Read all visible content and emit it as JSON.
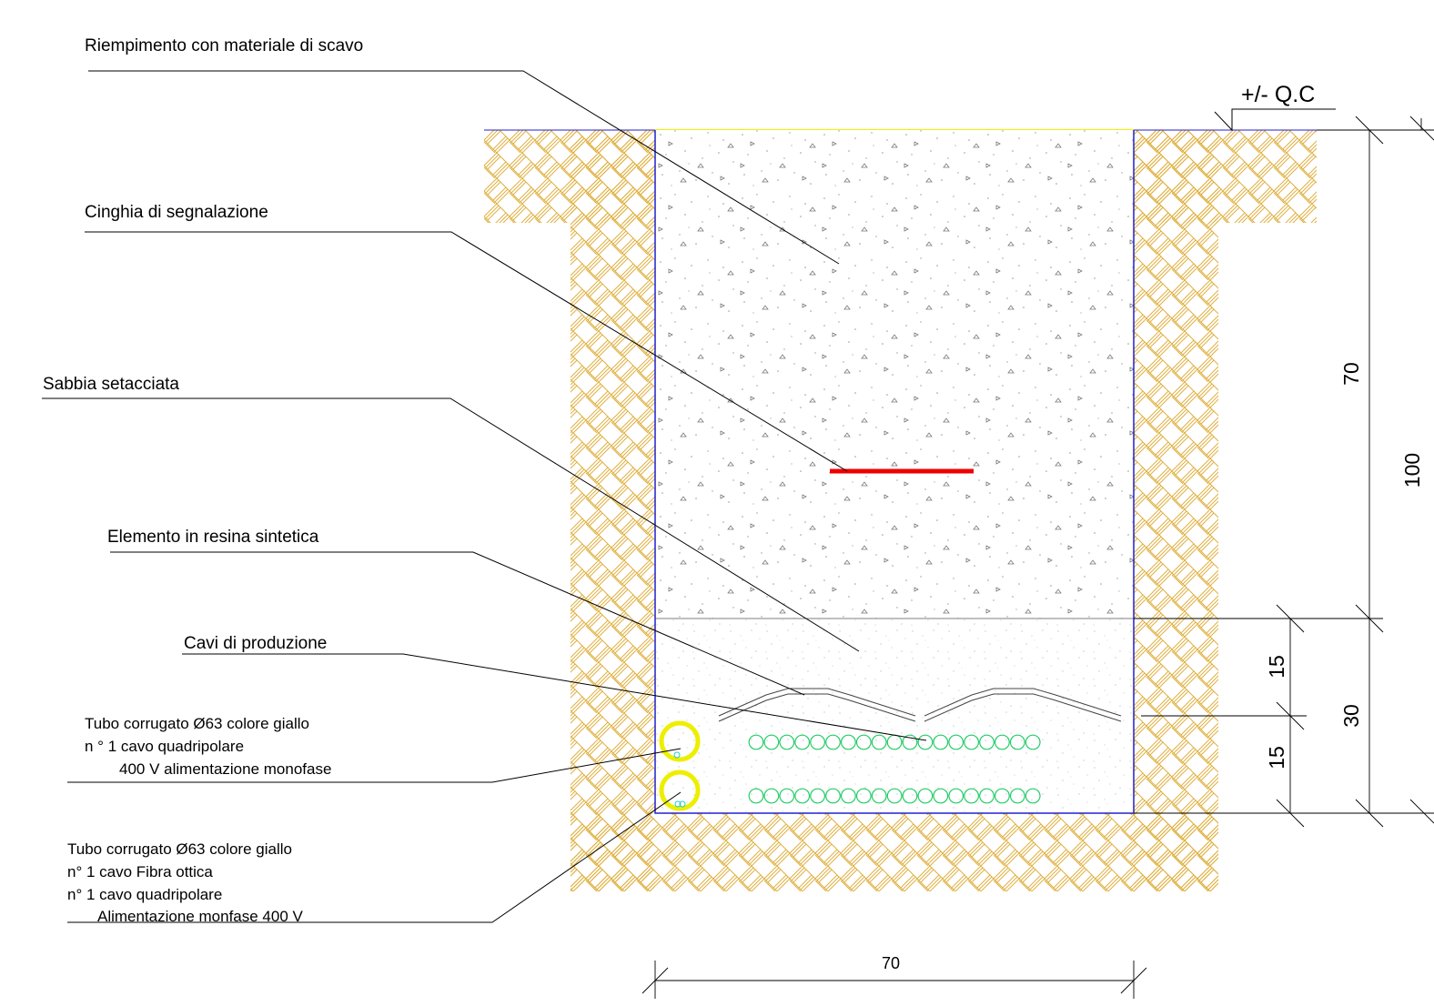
{
  "labels": {
    "riempimento": "Riempimento con materiale di scavo",
    "cinghia": "Cinghia di segnalazione",
    "sabbia": "Sabbia setacciata",
    "elemento": "Elemento in resina sintetica",
    "cavi": "Cavi di produzione",
    "tubo1": {
      "line1": "Tubo corrugato Ø63 colore giallo",
      "line2": "n ° 1 cavo quadripolare",
      "line3": "400 V alimentazione monofase"
    },
    "tubo2": {
      "line1": "Tubo corrugato Ø63 colore giallo",
      "line2": "n° 1 cavo Fibra ottica",
      "line3": "n° 1 cavo quadripolare",
      "line4": "Alimentazione monfase 400 V"
    }
  },
  "level_mark": "+/- Q.C",
  "dimensions": {
    "width": "70",
    "total_depth": "100",
    "fill_depth": "70",
    "sand_depth": "30",
    "upper_sand": "15",
    "lower_sand": "15"
  },
  "colors": {
    "soil_hatch": "#e0b040",
    "trench_outline": "#2020d0",
    "warning_tape": "#ee0000",
    "conduit": "#eeee00",
    "production_cables": "#22cc66",
    "ground_surface": "#f0f000"
  }
}
